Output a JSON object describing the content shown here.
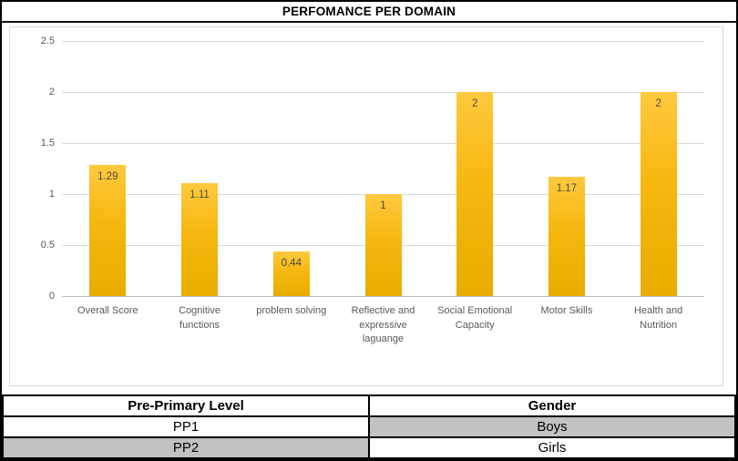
{
  "chart_data": {
    "type": "bar",
    "title": "PERFOMANCE PER DOMAIN",
    "categories": [
      "Overall Score",
      "Cognitive functions",
      "problem solving",
      "Reflective and expressive laguange",
      "Social Emotional Capacity",
      "Motor Skills",
      "Health and Nutrition"
    ],
    "category_lines": [
      [
        "Overall Score"
      ],
      [
        "Cognitive",
        "functions"
      ],
      [
        "problem solving"
      ],
      [
        "Reflective and",
        "expressive",
        "laguange"
      ],
      [
        "Social Emotional",
        "Capacity"
      ],
      [
        "Motor Skills"
      ],
      [
        "Health and",
        "Nutrition"
      ]
    ],
    "values": [
      1.29,
      1.11,
      0.44,
      1,
      2,
      1.17,
      2
    ],
    "value_labels": [
      "1.29",
      "1.11",
      "0.44",
      "1",
      "2",
      "1.17",
      "2"
    ],
    "xlabel": "",
    "ylabel": "",
    "ylim": [
      0,
      2.5
    ],
    "y_ticks": [
      0,
      0.5,
      1,
      1.5,
      2,
      2.5
    ],
    "y_tick_labels": [
      "0",
      "0.5",
      "1",
      "1.5",
      "2",
      "2.5"
    ],
    "grid": true,
    "legend": false,
    "bar_color_top": "#FFC93F",
    "bar_color_mid": "#F6B70E",
    "bar_color_bottom": "#E9AC00",
    "label_color": "#595959"
  },
  "table": {
    "headers": [
      "Pre-Primary Level",
      "Gender"
    ],
    "rows": [
      {
        "cells": [
          {
            "text": "PP1",
            "selected": false
          },
          {
            "text": "Boys",
            "selected": true
          }
        ]
      },
      {
        "cells": [
          {
            "text": "PP2",
            "selected": true
          },
          {
            "text": "Girls",
            "selected": false
          }
        ]
      }
    ],
    "selected_bg": "#C2C2C2"
  }
}
